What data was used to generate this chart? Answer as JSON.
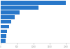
{
  "values": [
    2000,
    1150,
    580,
    430,
    330,
    260,
    200,
    175,
    150
  ],
  "bar_color": "#2877c9",
  "background_color": "#ffffff",
  "xlim": [
    0,
    2100
  ],
  "bar_height": 0.82,
  "tick_color": "#999999",
  "axis_color": "#cccccc",
  "xticks": [
    0,
    500,
    1000,
    1500,
    2000
  ]
}
